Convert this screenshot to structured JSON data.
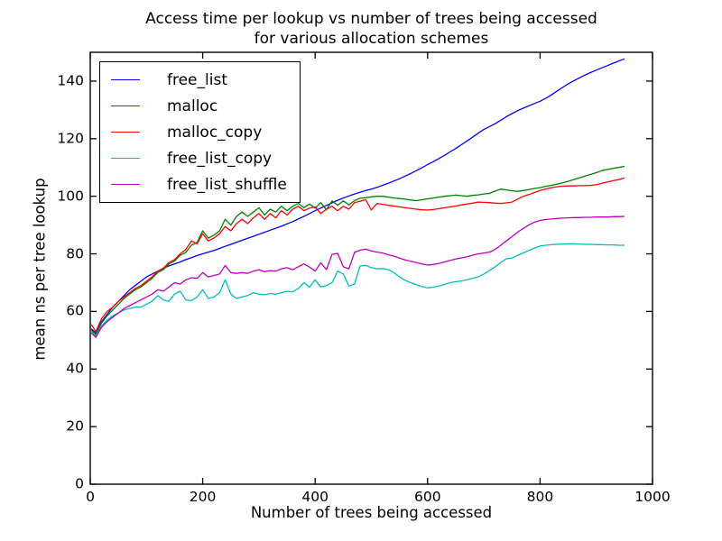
{
  "figure": {
    "background": "#ffffff",
    "axis_color": "#000000"
  },
  "chart_data": {
    "type": "line",
    "title_line1": "Access time per lookup vs number of trees being accessed",
    "title_line2": "for various allocation schemes",
    "xlabel": "Number of trees being accessed",
    "ylabel": "mean ns per tree lookup",
    "xlim": [
      0,
      1000
    ],
    "ylim": [
      0,
      150
    ],
    "xticks": [
      0,
      200,
      400,
      600,
      800,
      1000
    ],
    "yticks": [
      0,
      20,
      40,
      60,
      80,
      100,
      120,
      140
    ],
    "grid": false,
    "legend_position": "upper left",
    "x": [
      2,
      10,
      20,
      30,
      40,
      50,
      60,
      70,
      80,
      90,
      100,
      110,
      120,
      130,
      140,
      150,
      160,
      170,
      180,
      190,
      200,
      210,
      220,
      230,
      240,
      250,
      260,
      270,
      280,
      290,
      300,
      310,
      320,
      330,
      340,
      350,
      360,
      370,
      380,
      390,
      400,
      410,
      420,
      430,
      440,
      450,
      460,
      470,
      480,
      490,
      500,
      510,
      520,
      530,
      540,
      550,
      560,
      570,
      580,
      590,
      600,
      610,
      620,
      630,
      640,
      650,
      660,
      670,
      680,
      690,
      700,
      710,
      720,
      730,
      740,
      750,
      760,
      770,
      780,
      790,
      800,
      810,
      820,
      830,
      840,
      850,
      860,
      870,
      880,
      890,
      900,
      910,
      920,
      930,
      940,
      950
    ],
    "series": [
      {
        "name": "free_list",
        "color": "#0000ff",
        "values": [
          54,
          52.5,
          56.5,
          59,
          61.5,
          63.5,
          65.5,
          67.5,
          69,
          70.5,
          72,
          73,
          74,
          75,
          75.8,
          76.5,
          77.2,
          78,
          78.7,
          79.4,
          80,
          80.6,
          81.2,
          81.9,
          82.6,
          83.3,
          84,
          84.7,
          85.4,
          86.1,
          86.8,
          87.5,
          88.2,
          88.9,
          89.6,
          90.4,
          91.2,
          92.1,
          93,
          94,
          95,
          95.9,
          96.8,
          97.7,
          98.6,
          99.4,
          100.1,
          100.8,
          101.4,
          102,
          102.5,
          103.1,
          103.8,
          104.5,
          105.3,
          106.1,
          107,
          107.9,
          108.9,
          109.9,
          111,
          112,
          113.1,
          114.2,
          115.4,
          116.6,
          117.9,
          119.2,
          120.5,
          121.9,
          123.2,
          124.2,
          125.2,
          126.4,
          127.6,
          128.7,
          129.7,
          130.6,
          131.4,
          132.2,
          133,
          134,
          135.2,
          136.5,
          137.8,
          139,
          140.1,
          141.1,
          142.1,
          143,
          143.8,
          144.6,
          145.4,
          146.2,
          147,
          147.7
        ]
      },
      {
        "name": "malloc",
        "color": "#008000",
        "values": [
          53.5,
          52,
          56,
          58.5,
          60.5,
          62.5,
          64.5,
          66,
          67.5,
          68.5,
          70,
          71.5,
          73.5,
          74.5,
          76.5,
          77.5,
          79.5,
          80.5,
          83,
          84,
          88,
          85.5,
          86.5,
          88,
          92,
          90,
          93,
          94.5,
          93,
          94.5,
          96,
          93.5,
          95.5,
          94.5,
          96.5,
          95,
          96.5,
          97.5,
          96,
          97.3,
          95.9,
          97.8,
          95.3,
          98.4,
          96.9,
          98.4,
          97,
          98.5,
          99.3,
          99.5,
          99.8,
          100,
          100,
          99.7,
          99.4,
          99.2,
          99,
          98.7,
          98.5,
          98.8,
          99.1,
          99.4,
          99.7,
          100,
          100.2,
          100.4,
          100.2,
          100,
          100.3,
          100.5,
          100.8,
          101,
          101.8,
          102.5,
          102.2,
          101.9,
          101.7,
          102,
          102.3,
          102.7,
          103,
          103.4,
          103.8,
          104.2,
          104.7,
          105.2,
          105.8,
          106.4,
          107,
          107.6,
          108.2,
          108.9,
          109.3,
          109.7,
          110,
          110.4
        ]
      },
      {
        "name": "malloc_copy",
        "color": "#ff0000",
        "values": [
          55.5,
          53,
          57.5,
          60,
          61.5,
          63.5,
          65,
          66.5,
          68,
          69,
          70.5,
          72,
          74,
          75,
          77,
          78,
          80,
          81.5,
          84.5,
          83.5,
          87,
          84.5,
          85.5,
          87,
          89.5,
          88,
          90.5,
          92,
          90.5,
          92.5,
          94,
          92,
          94,
          92.5,
          95,
          93.5,
          95.5,
          96.5,
          95,
          95.9,
          96.3,
          94,
          95.5,
          96.5,
          95,
          96.5,
          95.5,
          97.8,
          98.3,
          98.8,
          95.2,
          97.5,
          97.2,
          96.9,
          96.6,
          96.3,
          96,
          95.8,
          95.5,
          95.3,
          95.2,
          95.4,
          95.7,
          96,
          96.3,
          96.6,
          97,
          97.3,
          97.6,
          98,
          97.9,
          97.8,
          97.6,
          97.5,
          97.7,
          98,
          99,
          100,
          100.6,
          101.3,
          102,
          102.5,
          103,
          103.3,
          103.5,
          103.6,
          103.6,
          103.7,
          103.7,
          103.8,
          104,
          104.5,
          105,
          105.4,
          105.8,
          106.3
        ]
      },
      {
        "name": "free_list_copy",
        "color": "#00bfbf",
        "values": [
          53,
          51.5,
          55,
          57,
          58.5,
          59.5,
          60.5,
          61,
          61.5,
          61.5,
          62.5,
          63.5,
          65.5,
          64,
          63.5,
          66,
          67,
          64,
          63.8,
          65,
          67.5,
          64.5,
          65,
          66.5,
          71,
          66,
          64.5,
          65,
          65.5,
          66.5,
          66,
          65.8,
          66.2,
          66,
          66.5,
          67,
          66.8,
          68,
          70,
          68.5,
          71,
          68.5,
          69,
          70,
          74,
          73,
          68.8,
          69.5,
          75.8,
          76,
          75.2,
          74.8,
          74.9,
          74.5,
          73.5,
          72,
          70.8,
          70,
          69.3,
          68.6,
          68.2,
          68.4,
          68.8,
          69.4,
          70,
          70.3,
          70.6,
          71,
          71.5,
          72,
          73,
          74.2,
          75.5,
          77,
          78.3,
          78.5,
          79.5,
          80.3,
          81.2,
          82,
          82.7,
          83,
          83.2,
          83.3,
          83.4,
          83.5,
          83.5,
          83.4,
          83.3,
          83.3,
          83.2,
          83.2,
          83.1,
          83.1,
          83,
          83
        ]
      },
      {
        "name": "free_list_shuffle",
        "color": "#bf00bf",
        "values": [
          52.5,
          51,
          54.5,
          56.5,
          58,
          59.5,
          61,
          62,
          63,
          64,
          65,
          66,
          67.5,
          67,
          68.5,
          70,
          69.5,
          71,
          71.7,
          71.5,
          73.5,
          72,
          72.5,
          73,
          76,
          73.5,
          73.2,
          73.5,
          73.2,
          74,
          74.5,
          73.8,
          74.2,
          74,
          74.8,
          75.2,
          74.5,
          75.5,
          76.5,
          75.4,
          74,
          76.9,
          74.5,
          79.8,
          80.2,
          75.5,
          74.8,
          80.5,
          81.3,
          81.6,
          81,
          80.6,
          80.3,
          79.7,
          79.2,
          78.5,
          77.9,
          77.4,
          77,
          76.5,
          76.1,
          76.3,
          76.7,
          77.2,
          77.7,
          78.2,
          78.6,
          79,
          79.5,
          80,
          80.3,
          80.6,
          81.5,
          83,
          84.5,
          86,
          87.5,
          88.8,
          90,
          91,
          91.6,
          91.9,
          92.1,
          92.3,
          92.4,
          92.5,
          92.6,
          92.6,
          92.7,
          92.7,
          92.8,
          92.8,
          92.8,
          92.9,
          92.9,
          93
        ]
      }
    ]
  }
}
